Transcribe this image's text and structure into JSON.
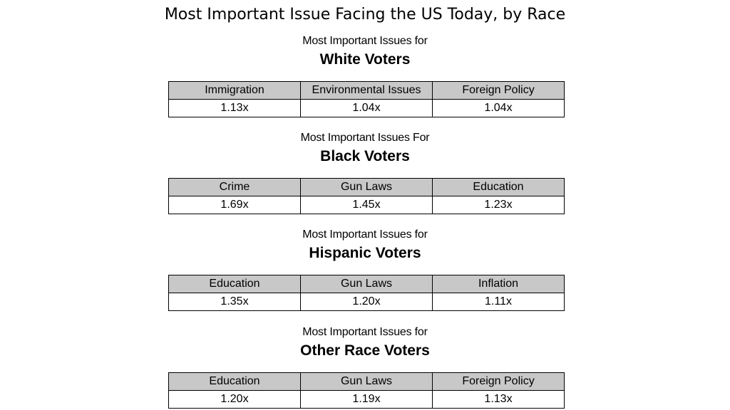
{
  "title": "Most Important Issue Facing the US Today, by Race",
  "groups": [
    {
      "subtitle": "Most Important Issues for",
      "heading": "White Voters",
      "issues": [
        "Immigration",
        "Environmental Issues",
        "Foreign Policy"
      ],
      "values": [
        "1.13x",
        "1.04x",
        "1.04x"
      ]
    },
    {
      "subtitle": "Most Important Issues For",
      "heading": "Black Voters",
      "issues": [
        "Crime",
        "Gun Laws",
        "Education"
      ],
      "values": [
        "1.69x",
        "1.45x",
        "1.23x"
      ]
    },
    {
      "subtitle": "Most Important Issues for",
      "heading": "Hispanic Voters",
      "issues": [
        "Education",
        "Gun Laws",
        "Inflation"
      ],
      "values": [
        "1.35x",
        "1.20x",
        "1.11x"
      ]
    },
    {
      "subtitle": "Most Important Issues for",
      "heading": "Other Race Voters",
      "issues": [
        "Education",
        "Gun Laws",
        "Foreign Policy"
      ],
      "values": [
        "1.20x",
        "1.19x",
        "1.13x"
      ]
    }
  ],
  "colors": {
    "header_fill": "#c8c8c8",
    "border": "#000000",
    "background": "#ffffff"
  }
}
